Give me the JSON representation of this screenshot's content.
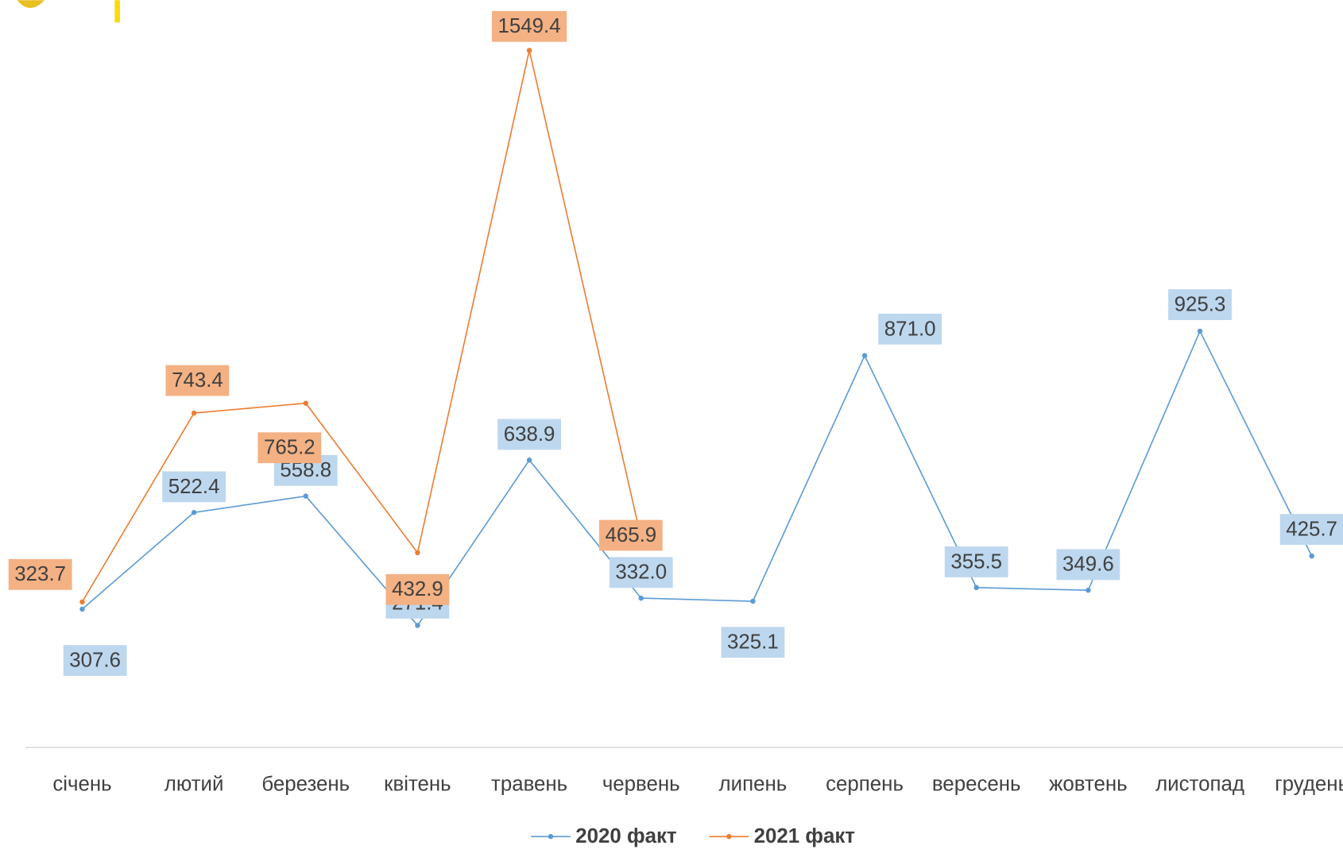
{
  "chart_data": {
    "type": "line",
    "categories": [
      "січень",
      "лютий",
      "березень",
      "квітень",
      "травень",
      "червень",
      "липень",
      "серпень",
      "вересень",
      "жовтень",
      "листопад",
      "грудень"
    ],
    "series": [
      {
        "name": "2020 факт",
        "color": "#5b9bd5",
        "label_color": "#bdd7ee",
        "values": [
          307.6,
          522.4,
          558.8,
          271.4,
          638.9,
          332.0,
          325.1,
          871.0,
          355.5,
          349.6,
          925.3,
          425.7
        ],
        "value_labels": [
          "307.6",
          "522.4",
          "558.8",
          "271.4",
          "638.9",
          "332.0",
          "325.1",
          "871.0",
          "355.5",
          "349.6",
          "925.3",
          "425.7"
        ]
      },
      {
        "name": "2021 факт",
        "color": "#ed7d31",
        "label_color": "#f4b183",
        "values": [
          323.7,
          743.4,
          765.2,
          432.9,
          1549.4,
          465.9,
          null,
          null,
          null,
          null,
          null,
          null
        ],
        "value_labels": [
          "323.7",
          "743.4",
          "765.2",
          "432.9",
          "1549.4",
          "465.9",
          null,
          null,
          null,
          null,
          null,
          null
        ]
      }
    ],
    "ylim": [
      0,
      1661
    ],
    "grid": false,
    "legend": "bottom"
  }
}
